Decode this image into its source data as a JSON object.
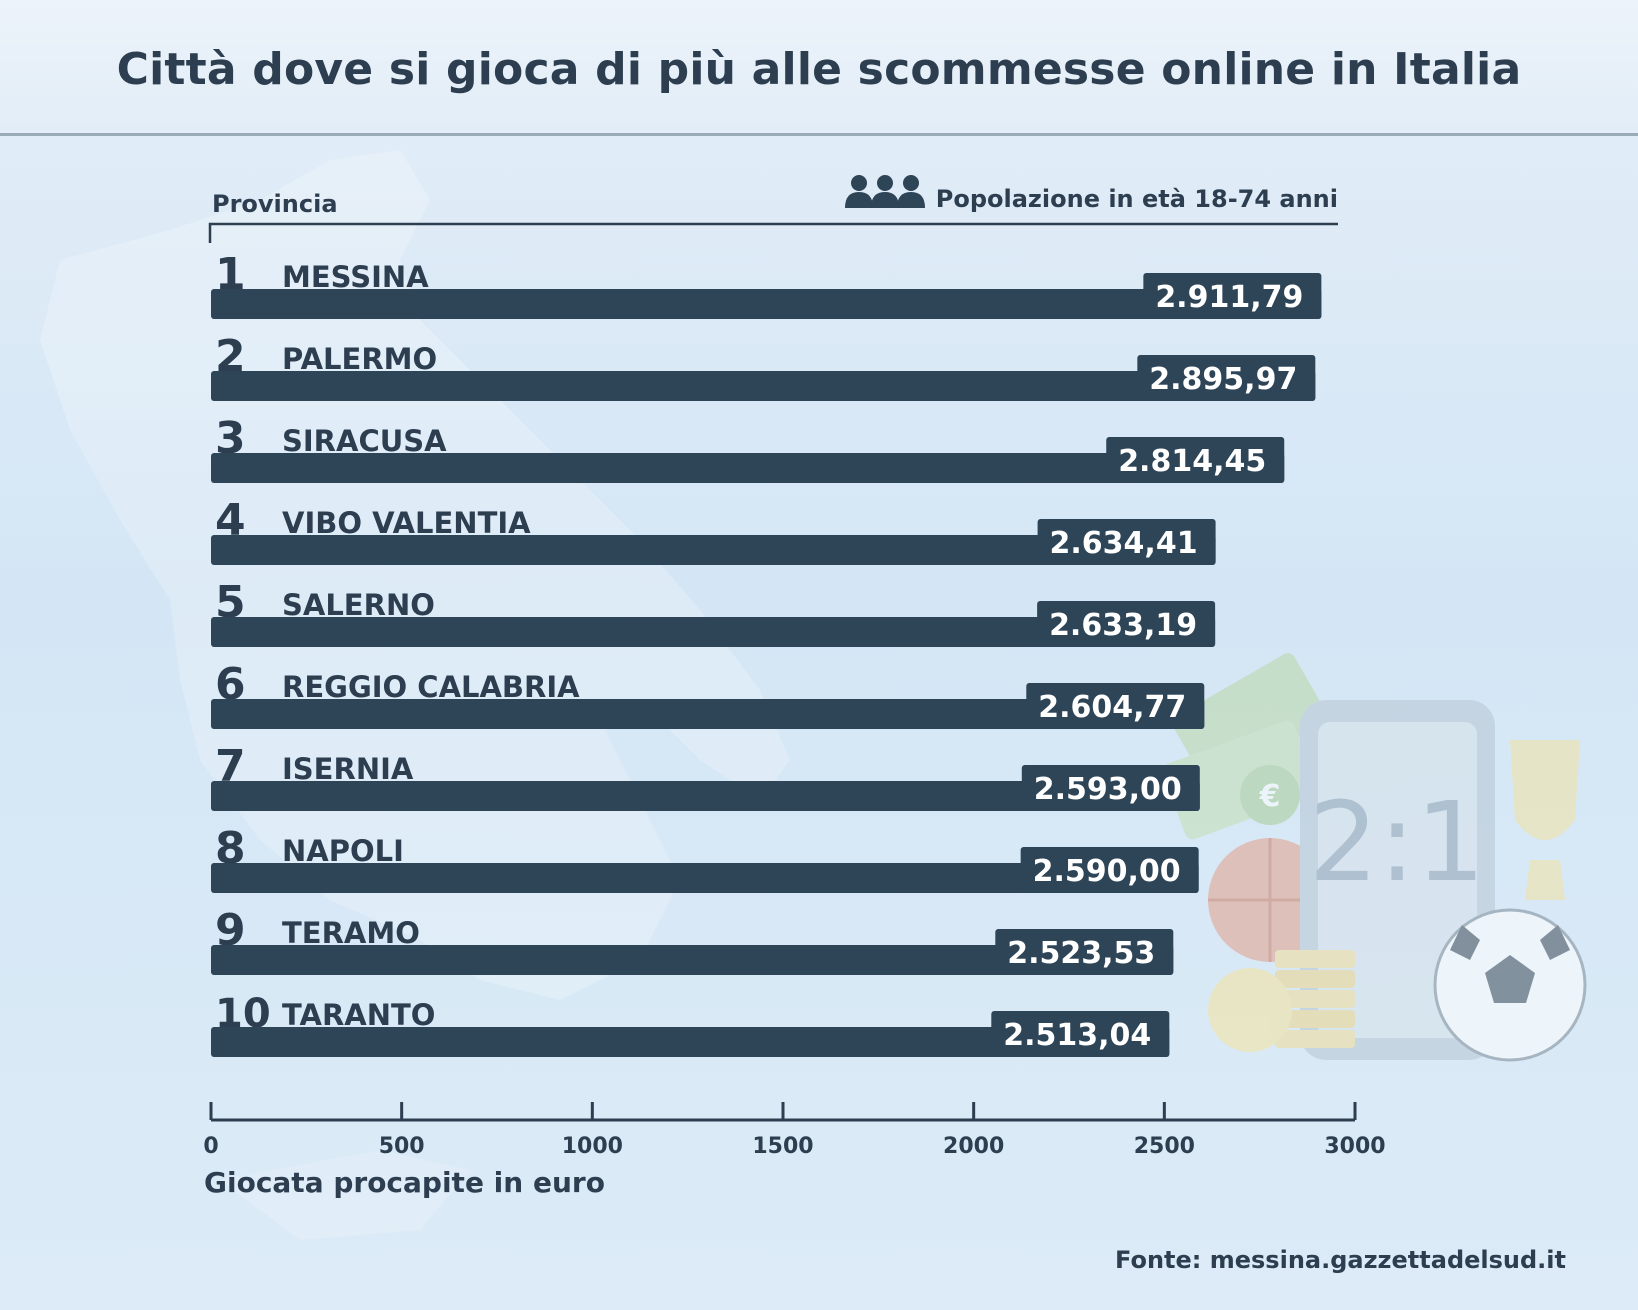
{
  "title": "Città dove si gioca di più alle scommesse online in Italia",
  "source": "Fonte: messina.gazzettadelsud.it",
  "colors": {
    "bar": "#2e4457",
    "text": "#2c3e50",
    "label_text": "#ffffff"
  },
  "legend_icon": "people-group-icon",
  "chart_data": {
    "type": "bar",
    "orientation": "horizontal",
    "category_header": "Provincia",
    "legend_note": "Popolazione in età 18-74 anni",
    "xlabel": "Giocata procapite in euro",
    "xlim": [
      0,
      3000
    ],
    "xticks": [
      0,
      500,
      1000,
      1500,
      2000,
      2500,
      3000
    ],
    "categories": [
      "MESSINA",
      "PALERMO",
      "SIRACUSA",
      "VIBO VALENTIA",
      "SALERNO",
      "REGGIO CALABRIA",
      "ISERNIA",
      "NAPOLI",
      "TERAMO",
      "TARANTO"
    ],
    "ranks": [
      "1",
      "2",
      "3",
      "4",
      "5",
      "6",
      "7",
      "8",
      "9",
      "10"
    ],
    "values": [
      2911.79,
      2895.97,
      2814.45,
      2634.41,
      2633.19,
      2604.77,
      2593.0,
      2590.0,
      2523.53,
      2513.04
    ],
    "value_labels": [
      "2.911,79",
      "2.895,97",
      "2.814,45",
      "2.634,41",
      "2.633,19",
      "2.604,77",
      "2.593,00",
      "2.590,00",
      "2.523,53",
      "2.513,04"
    ]
  }
}
